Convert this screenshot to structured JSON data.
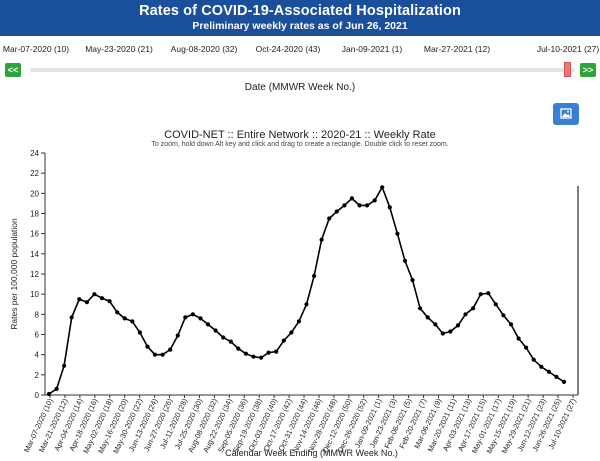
{
  "header": {
    "title": "Rates of COVID-19-Associated Hospitalization",
    "subtitle": "Preliminary weekly rates as of Jun 26, 2021"
  },
  "slider": {
    "tick_labels": [
      "Mar-07-2020 (10)",
      "May-23-2020 (21)",
      "Aug-08-2020 (32)",
      "Oct-24-2020 (43)",
      "Jan-09-2021 (1)",
      "Mar-27-2021 (12)",
      "Jul-10-2021 (27)"
    ],
    "prev_label": "<<",
    "next_label": ">>",
    "axis_label": "Date (MMWR Week No.)"
  },
  "image_button_icon": "image-icon",
  "chart_data": {
    "type": "line",
    "title": "COVID-NET :: Entire Network :: 2020-21 :: Weekly Rate",
    "subtitle": "To zoom, hold down Alt key and click and drag to create a rectangle. Double click to reset zoom.",
    "xlabel": "Calendar Week Ending (MMWR Week No.)",
    "ylabel": "Rates per 100,000 population",
    "ylim": [
      0,
      24
    ],
    "yticks": [
      0,
      2,
      4,
      6,
      8,
      10,
      12,
      14,
      16,
      18,
      20,
      22,
      24
    ],
    "grid": false,
    "line_color": "#000000",
    "x_tick_labels": [
      "Mar-07-2020 (10)",
      "Mar-21-2020 (12)",
      "Apr-04-2020 (14)",
      "Apr-18-2020 (16)",
      "May-02-2020 (18)",
      "May-16-2020 (20)",
      "May-30-2020 (22)",
      "Jun-13-2020 (24)",
      "Jun-27-2020 (26)",
      "Jul-11-2020 (28)",
      "Jul-25-2020 (30)",
      "Aug-08-2020 (32)",
      "Aug-22-2020 (34)",
      "Sep-05-2020 (36)",
      "Sep-19-2020 (38)",
      "Oct-03-2020 (40)",
      "Oct-17-2020 (42)",
      "Oct-31-2020 (44)",
      "Nov-14-2020 (46)",
      "Nov-28-2020 (48)",
      "Dec-12-2020 (50)",
      "Dec-26-2020 (52)",
      "Jan-09-2021 (1)",
      "Jan-23-2021 (3)",
      "Feb-06-2021 (5)",
      "Feb-20-2021 (7)",
      "Mar-06-2021 (9)",
      "Mar-20-2021 (11)",
      "Apr-03-2021 (13)",
      "Apr-17-2021 (15)",
      "May-01-2021 (17)",
      "May-15-2021 (19)",
      "May-29-2021 (21)",
      "Jun-12-2021 (23)",
      "Jun-26-2021 (25)",
      "Jul-10-2021 (27)"
    ],
    "series": [
      {
        "values": [
          0.1,
          0.6,
          2.9,
          7.7,
          9.5,
          9.2,
          10.0,
          9.6,
          9.3,
          8.2,
          7.6,
          7.3,
          6.2,
          4.8,
          4.0,
          4.0,
          4.5,
          5.9,
          7.7,
          8.0,
          7.6,
          7.0,
          6.4,
          5.7,
          5.3,
          4.6,
          4.1,
          3.8,
          3.7,
          4.2,
          4.3,
          5.4,
          6.2,
          7.3,
          9.0,
          11.8,
          15.4,
          17.5,
          18.2,
          18.8,
          19.5,
          18.8,
          18.8,
          19.3,
          20.6,
          18.6,
          16.0,
          13.3,
          11.4,
          8.6,
          7.7,
          7.0,
          6.1,
          6.3,
          6.9,
          8.0,
          8.6,
          10.0,
          10.1,
          9.0,
          7.9,
          7.0,
          5.6,
          4.7,
          3.5,
          2.8,
          2.3,
          1.8,
          1.3
        ]
      }
    ]
  }
}
